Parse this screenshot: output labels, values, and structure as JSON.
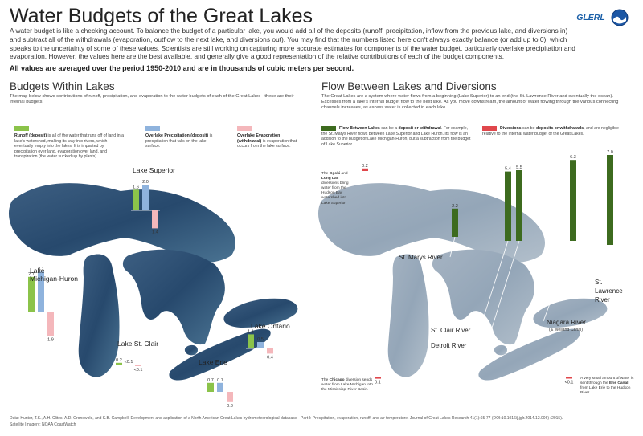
{
  "header": {
    "title": "Water Budgets of the Great Lakes",
    "intro": "A water budget is like a checking account. To balance the budget of a particular lake, you would add all of the deposits (runoff, precipitation, inflow from the previous lake, and diversions in) and subtract all of the withdrawals (evaporation, outflow to the next lake, and diversions out). You may find that the numbers listed here don't always exactly balance (or add up to 0), which speaks to the uncertainty of some of these values. Scientists are still working on capturing more accurate estimates for components of the water budget, particularly overlake precipitation and evaporation. However, the values here are the best available, and generally give a good representation of the relative contributions of each of the budget components.",
    "intro_bold": "All values are averaged over the period 1950-2010 and are in thousands of cubic meters per second.",
    "logo_text": "GLERL"
  },
  "colors": {
    "runoff": "#8bc34a",
    "precipitation": "#8fb3dd",
    "evaporation": "#f4b7bb",
    "flow": "#3d6b1f",
    "diversion": "#e0474c"
  },
  "left_section": {
    "title": "Budgets Within Lakes",
    "description": "The map below shows contributions of runoff, precipitation, and evaporation to the water budgets of each of the Great Lakes - these are their internal budgets.",
    "legend": [
      {
        "key": "runoff",
        "bold": "Runoff (deposit)",
        "text": " is all of the water that runs off of land in a lake's watershed, making its way into rivers, which eventually empty into the lakes. It is impacted by precipitation over land, evaporation over land, and transpiration (the water sucked up by plants)."
      },
      {
        "key": "precipitation",
        "bold": "Overlake Precipitation (deposit)",
        "text": " is precipitation that falls on the lake surface."
      },
      {
        "key": "evaporation",
        "bold": "Overlake Evaporation (withdrawal)",
        "text": " is evaporation that occurs from the lake surface."
      }
    ]
  },
  "right_section": {
    "title": "Flow Between Lakes and Diversions",
    "description": "The Great Lakes are a system where water flows from a beginning (Lake Superior) to an end (the St. Lawrence River and eventually the ocean). Excesses from a lake's internal budget flow to the next lake. As you move downstream, the amount of water flowing through the various connecting channels increases, as excess water is collected in each lake.",
    "legend": [
      {
        "key": "flow",
        "bold": "Flow Between Lakes",
        "mid": " can be a ",
        "bold2": "deposit or withdrawal",
        "text": ". For example, the St. Marys River flows between Lake Superior and Lake Huron. Its flow is an addition to the budget of Lake Michigan-Huron, but a subtraction from the budget of Lake Superior."
      },
      {
        "key": "diversion",
        "bold": "Diversions",
        "mid": " can be ",
        "bold2": "deposits or withdrawals",
        "text": ", and are negligible relative to the internal water budget of the Great Lakes."
      }
    ],
    "notes": {
      "ogoki_pre": "The ",
      "ogoki_b1": "Ogoki",
      "ogoki_mid": " and ",
      "ogoki_b2": "Long Lac",
      "ogoki_post": " diversions bring water from the Hudson Bay watershed into Lake Superior.",
      "chicago_pre": "The ",
      "chicago_b": "Chicago",
      "chicago_post": " diversion sends water from Lake Michigan into the Mississippi River Basin.",
      "erie_pre": "A very small amount of water is sent through the ",
      "erie_b": "Erie Canal",
      "erie_post": " from Lake Erie to the Hudson River."
    }
  },
  "chart_data": [
    {
      "type": "bar",
      "title": "Budgets Within Lakes",
      "categories": [
        "Lake Superior",
        "Lake Michigan-Huron",
        "Lake St. Clair",
        "Lake Erie",
        "Lake Ontario"
      ],
      "category_labels": [
        "Lake Superior",
        "Lake\nMichigan-Huron",
        "Lake St. Clair",
        "Lake Erie",
        "Lake Ontario"
      ],
      "series": [
        {
          "name": "Runoff",
          "values": [
            1.6,
            2.7,
            0.2,
            0.7,
            1.1
          ],
          "labels": [
            "1.6",
            "2.7",
            "0.2",
            "0.7",
            "1.1"
          ]
        },
        {
          "name": "Overlake Precipitation",
          "values": [
            2.0,
            3.1,
            0.05,
            0.7,
            0.5
          ],
          "labels": [
            "2.0",
            "3.1",
            "<0.1",
            "0.7",
            "0.5"
          ]
        },
        {
          "name": "Overlake Evaporation",
          "values": [
            -1.4,
            -1.9,
            -0.05,
            -0.8,
            -0.4
          ],
          "labels": [
            "1.4",
            "1.9",
            "<0.1",
            "0.8",
            "0.4"
          ]
        }
      ]
    },
    {
      "type": "bar",
      "title": "Flow Between Lakes and Diversions",
      "flows": [
        {
          "name": "Ogoki and Long Lac diversions",
          "value": 0.2,
          "label": "0.2",
          "kind": "diversion"
        },
        {
          "name": "St. Marys River",
          "value": 2.2,
          "label": "2.2",
          "kind": "flow"
        },
        {
          "name": "St. Clair River",
          "value": 5.4,
          "label": "5.4",
          "kind": "flow"
        },
        {
          "name": "Detroit River",
          "value": 5.5,
          "label": "5.5",
          "kind": "flow"
        },
        {
          "name": "Niagara River (& Welland Canal)",
          "value": 6.3,
          "label": "6.3",
          "kind": "flow"
        },
        {
          "name": "St. Lawrence River",
          "value": 7.0,
          "label": "7.0",
          "kind": "flow"
        },
        {
          "name": "Chicago diversion",
          "value": -0.1,
          "label": "0.1",
          "kind": "diversion"
        },
        {
          "name": "Erie Canal",
          "value": -0.05,
          "label": "<0.1",
          "kind": "diversion"
        }
      ],
      "river_labels": {
        "st_marys": "St. Marys River",
        "st_clair": "St. Clair River",
        "detroit": "Detroit River",
        "niagara": "Niagara River",
        "niagara_sub": "(& Welland Canal)",
        "st_lawrence": "St.\nLawrence\nRiver"
      }
    }
  ],
  "footer": {
    "data_line": "Data: Hunter, T.S., A.H. Clites, A.D. Gronewold, and K.B. Campbell. Development and application of a North American Great Lakes hydrometeorological database - Part I: Precipitation, evaporation, runoff, and air temperature. Journal of Great Lakes Research 41(1):65-77 (DOI:10.1016/j.jglr.2014.12.006) (2015).",
    "imagery_line": "Satellite Imagery: NOAA CoastWatch"
  }
}
